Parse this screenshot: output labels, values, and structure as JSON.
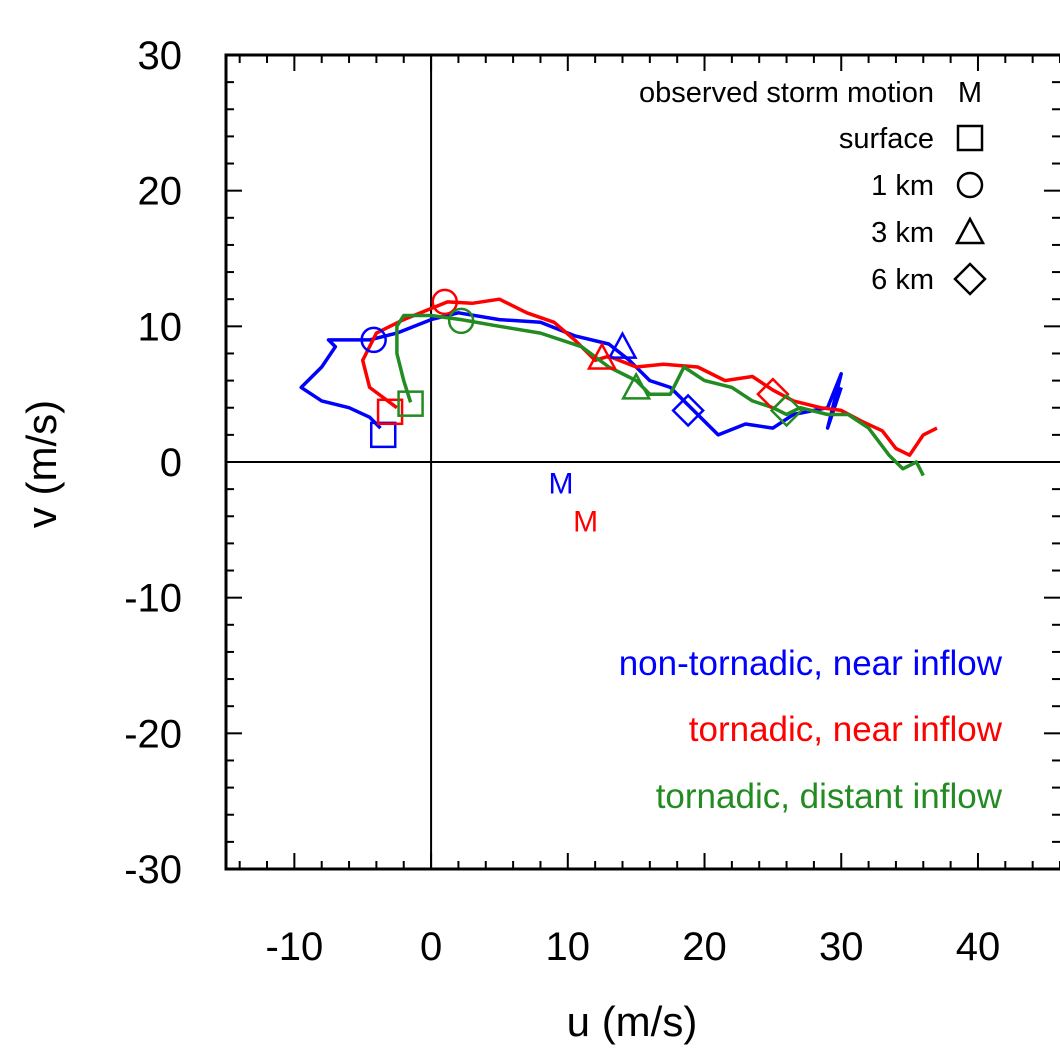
{
  "chart_data": {
    "type": "line",
    "xlabel": "u (m/s)",
    "ylabel": "v (m/s)",
    "xlim": [
      -15,
      46
    ],
    "ylim": [
      -30,
      30
    ],
    "x_ticks": [
      -10,
      0,
      10,
      20,
      30,
      40
    ],
    "y_ticks": [
      30,
      20,
      10,
      0,
      -10,
      -20,
      -30
    ],
    "x_tick_labels": [
      "-10",
      "0",
      "10",
      "20",
      "30",
      "40"
    ],
    "y_tick_labels": [
      "30",
      "20",
      "10",
      "0",
      "-10",
      "-20",
      "-30"
    ],
    "zero_lines": true,
    "legend": {
      "placement": "top-right",
      "entries": [
        {
          "label": "observed storm motion",
          "marker": "M"
        },
        {
          "label": "surface",
          "marker": "square"
        },
        {
          "label": "1 km",
          "marker": "circle"
        },
        {
          "label": "3 km",
          "marker": "triangle"
        },
        {
          "label": "6 km",
          "marker": "diamond"
        }
      ]
    },
    "series": [
      {
        "name": "non-tornadic, near inflow",
        "color": "#0000ff",
        "x": [
          -3.7,
          -4.5,
          -6.0,
          -8.0,
          -9.5,
          -8.0,
          -7.0,
          -7.5,
          -6.0,
          -4.5,
          -2.5,
          0.0,
          2.0,
          5.0,
          8.0,
          10.5,
          13.0,
          14.5,
          16.0,
          17.5,
          18.8,
          21.0,
          23.0,
          25.0,
          26.5,
          28.0,
          29.0,
          30.0,
          29.0,
          30.0
        ],
        "y": [
          2.5,
          3.3,
          4.0,
          4.5,
          5.5,
          7.0,
          8.5,
          9.0,
          9.0,
          9.0,
          9.5,
          10.5,
          11.0,
          10.5,
          10.3,
          9.3,
          8.7,
          7.5,
          6.0,
          5.5,
          4.2,
          2.0,
          2.8,
          2.5,
          3.5,
          3.8,
          4.0,
          6.5,
          2.5,
          5.5
        ]
      },
      {
        "name": "tornadic, near inflow",
        "color": "#ff0000",
        "x": [
          -2.5,
          -4.5,
          -5.0,
          -4.0,
          -2.0,
          1.2,
          3.0,
          5.0,
          7.0,
          9.0,
          10.5,
          12.0,
          13.0,
          15.0,
          17.0,
          19.5,
          21.5,
          23.5,
          25.0,
          26.5,
          28.5,
          30.0,
          31.5,
          33.0,
          34.0,
          35.0,
          36.0,
          37.0
        ],
        "y": [
          4.0,
          5.5,
          7.5,
          9.5,
          10.5,
          11.8,
          11.7,
          12.0,
          11.0,
          10.3,
          9.0,
          7.5,
          7.8,
          7.0,
          7.2,
          7.0,
          6.0,
          6.3,
          5.3,
          4.5,
          4.0,
          3.8,
          3.0,
          2.3,
          1.0,
          0.5,
          2.0,
          2.5
        ]
      },
      {
        "name": "tornadic, distant inflow",
        "color": "#228b22",
        "x": [
          -1.5,
          -2.0,
          -2.5,
          -2.5,
          -2.0,
          0.0,
          2.2,
          5.0,
          8.0,
          11.0,
          13.0,
          15.0,
          16.0,
          17.5,
          18.5,
          20.0,
          22.0,
          23.5,
          25.0,
          26.0,
          27.0,
          29.0,
          30.5,
          32.0,
          33.5,
          34.5,
          35.5,
          36.0
        ],
        "y": [
          4.4,
          6.0,
          8.0,
          10.0,
          10.8,
          10.8,
          10.5,
          10.0,
          9.5,
          8.5,
          7.0,
          6.0,
          5.0,
          5.0,
          7.0,
          6.0,
          5.5,
          4.5,
          4.0,
          3.5,
          4.0,
          3.5,
          3.5,
          2.5,
          0.5,
          -0.5,
          0.0,
          -1.0
        ]
      }
    ],
    "markers": [
      {
        "series": 0,
        "kind": "square",
        "x": -3.5,
        "y": 2.0
      },
      {
        "series": 0,
        "kind": "circle",
        "x": -4.2,
        "y": 9.0
      },
      {
        "series": 0,
        "kind": "triangle",
        "x": 14.0,
        "y": 8.5
      },
      {
        "series": 0,
        "kind": "diamond",
        "x": 18.8,
        "y": 3.8
      },
      {
        "series": 1,
        "kind": "square",
        "x": -3.0,
        "y": 3.7
      },
      {
        "series": 1,
        "kind": "circle",
        "x": 1.0,
        "y": 11.8
      },
      {
        "series": 1,
        "kind": "triangle",
        "x": 12.5,
        "y": 7.7
      },
      {
        "series": 1,
        "kind": "diamond",
        "x": 25.0,
        "y": 5.0
      },
      {
        "series": 2,
        "kind": "square",
        "x": -1.5,
        "y": 4.3
      },
      {
        "series": 2,
        "kind": "circle",
        "x": 2.2,
        "y": 10.4
      },
      {
        "series": 2,
        "kind": "triangle",
        "x": 15.0,
        "y": 5.5
      },
      {
        "series": 2,
        "kind": "diamond",
        "x": 26.0,
        "y": 3.8
      }
    ],
    "storm_motion": [
      {
        "series": 0,
        "label": "M",
        "x": 9.5,
        "y": -1.5
      },
      {
        "series": 1,
        "label": "M",
        "x": 11.3,
        "y": -4.3
      }
    ]
  }
}
